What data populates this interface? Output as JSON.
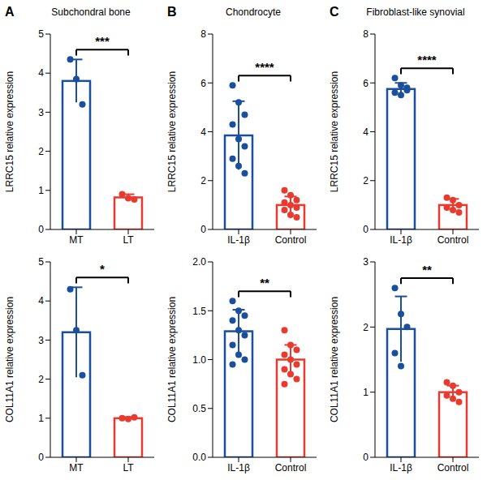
{
  "chart_data": [
    {
      "type": "bar",
      "panel_label": "A",
      "title": "Subchondral bone",
      "y_label": "LRRC15 relative expression",
      "categories": [
        "MT",
        "LT"
      ],
      "values": [
        3.8,
        0.82
      ],
      "error": [
        0.55,
        0.08
      ],
      "points": [
        [
          4.35,
          3.85,
          3.2
        ],
        [
          0.9,
          0.8,
          0.77
        ]
      ],
      "colors": [
        "#1a4f9e",
        "#e83a2e"
      ],
      "ylim": [
        0,
        5
      ],
      "yticks": [
        0,
        1,
        2,
        3,
        4,
        5
      ],
      "significance": "***"
    },
    {
      "type": "bar",
      "y_label": "COL11A1 relative expression",
      "categories": [
        "MT",
        "LT"
      ],
      "values": [
        3.2,
        1.0
      ],
      "error": [
        1.15,
        0.03
      ],
      "points": [
        [
          4.3,
          3.25,
          2.1
        ],
        [
          1.0,
          0.98,
          1.02
        ]
      ],
      "colors": [
        "#1a4f9e",
        "#e83a2e"
      ],
      "ylim": [
        0,
        5
      ],
      "yticks": [
        0,
        1,
        2,
        3,
        4,
        5
      ],
      "significance": "*"
    },
    {
      "type": "bar",
      "panel_label": "B",
      "title": "Chondrocyte",
      "y_label": "LRRC15 relative expression",
      "categories": [
        "IL-1β",
        "Control"
      ],
      "values": [
        3.85,
        1.0
      ],
      "error": [
        1.4,
        0.35
      ],
      "points": [
        [
          5.9,
          5.2,
          4.7,
          4.3,
          3.7,
          3.4,
          2.9,
          2.6,
          2.3
        ],
        [
          1.6,
          1.4,
          1.2,
          1.1,
          1.0,
          0.9,
          0.8,
          0.6,
          0.5
        ]
      ],
      "colors": [
        "#1a4f9e",
        "#e83a2e"
      ],
      "ylim": [
        0,
        8
      ],
      "yticks": [
        0,
        2,
        4,
        6,
        8
      ],
      "significance": "****"
    },
    {
      "type": "bar",
      "y_label": "COL11A1 relative expression",
      "categories": [
        "IL-1β",
        "Control"
      ],
      "values": [
        1.29,
        1.0
      ],
      "error": [
        0.22,
        0.15
      ],
      "points": [
        [
          1.6,
          1.5,
          1.45,
          1.4,
          1.3,
          1.25,
          1.15,
          1.05,
          1.0,
          0.95
        ],
        [
          1.3,
          1.15,
          1.1,
          1.05,
          1.0,
          0.95,
          0.9,
          0.85,
          0.8,
          0.75
        ]
      ],
      "colors": [
        "#1a4f9e",
        "#e83a2e"
      ],
      "ylim": [
        0,
        2
      ],
      "yticks": [
        {
          "value": 0,
          "label": "0.0"
        },
        0.5,
        {
          "value": 1,
          "label": "1.0"
        },
        1.5,
        {
          "value": 2,
          "label": "2.0"
        }
      ],
      "significance": "**"
    },
    {
      "type": "bar",
      "panel_label": "C",
      "title": "Fibroblast-like synovial",
      "y_label": "LRRC15 relative expression",
      "categories": [
        "IL-1β",
        "Control"
      ],
      "values": [
        5.75,
        1.0
      ],
      "error": [
        0.25,
        0.25
      ],
      "points": [
        [
          6.2,
          5.9,
          5.8,
          5.6,
          5.5,
          5.7
        ],
        [
          1.3,
          1.2,
          1.0,
          0.9,
          0.8,
          0.7
        ]
      ],
      "colors": [
        "#1a4f9e",
        "#e83a2e"
      ],
      "ylim": [
        0,
        8
      ],
      "yticks": [
        0,
        2,
        4,
        6,
        8
      ],
      "significance": "****"
    },
    {
      "type": "bar",
      "y_label": "COL11A1 relative expression",
      "categories": [
        "IL-1β",
        "Control"
      ],
      "values": [
        1.97,
        1.0
      ],
      "error": [
        0.5,
        0.1
      ],
      "points": [
        [
          2.6,
          2.2,
          2.0,
          1.6,
          1.4
        ],
        [
          1.15,
          1.1,
          1.0,
          0.95,
          0.9,
          0.85
        ]
      ],
      "colors": [
        "#1a4f9e",
        "#e83a2e"
      ],
      "ylim": [
        0,
        3
      ],
      "yticks": [
        0,
        1,
        2,
        3
      ],
      "significance": "**"
    }
  ]
}
